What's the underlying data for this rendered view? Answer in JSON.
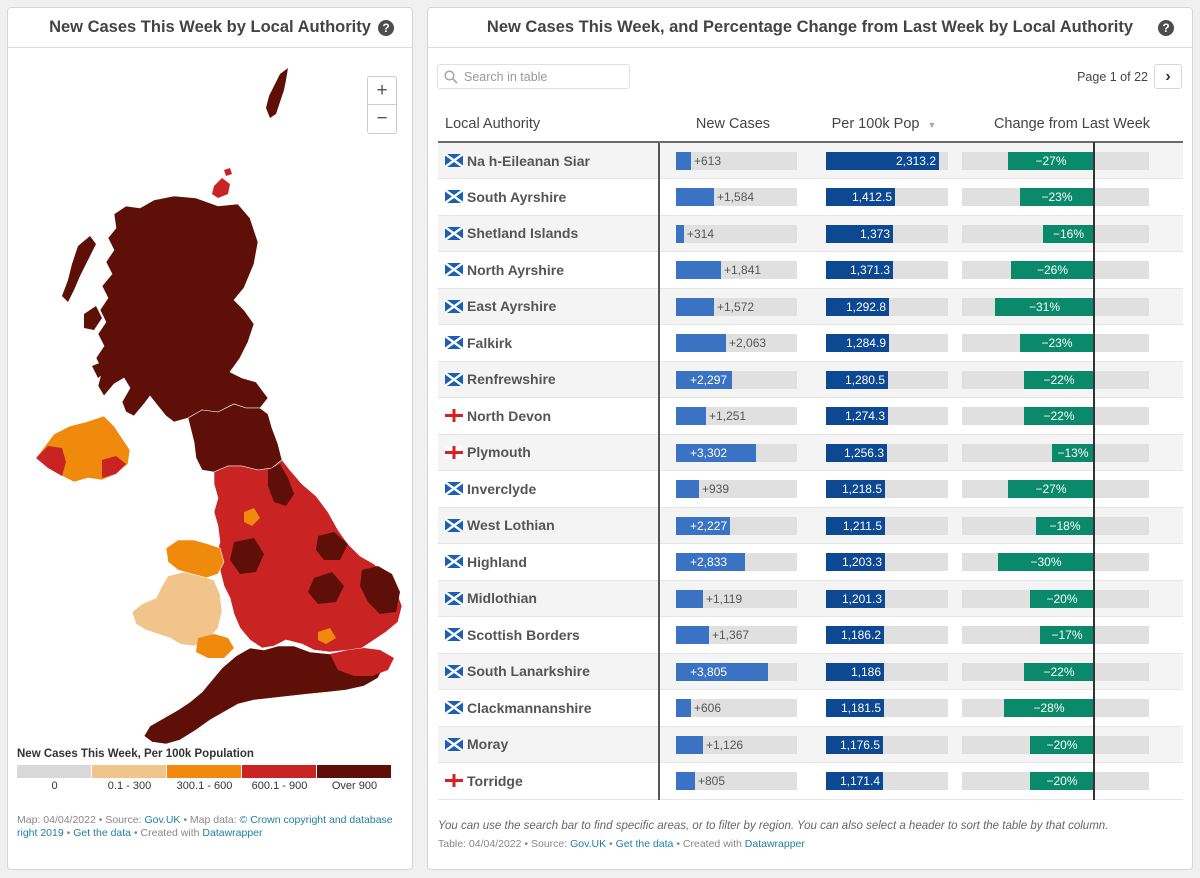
{
  "left_panel": {
    "title": "New Cases This Week by Local Authority",
    "help": "?",
    "zoom_in": "+",
    "zoom_out": "−",
    "legend_title": "New Cases This Week, Per 100k Population",
    "legend": [
      {
        "label": "0",
        "color": "#d8d8d8"
      },
      {
        "label": "0.1 - 300",
        "color": "#f0c48a"
      },
      {
        "label": "300.1 - 600",
        "color": "#f08a0d"
      },
      {
        "label": "600.1 - 900",
        "color": "#c92323"
      },
      {
        "label": "Over 900",
        "color": "#5e1008"
      }
    ],
    "footer": {
      "line1_a": "Map: 04/04/2022 • Source: ",
      "source": "Gov.UK",
      "line1_b": " • Map data: ",
      "copyright": "© Crown copyright and database",
      "copyright2": "right 2019",
      "sep1": " • ",
      "get_data": "Get the data",
      "created": " • Created with ",
      "tool": "Datawrapper"
    }
  },
  "right_panel": {
    "title": "New Cases This Week, and Percentage Change from Last Week by Local Authority",
    "help": "?",
    "search_placeholder": "Search in table",
    "pager": "Page 1 of 22",
    "next": "›",
    "columns": {
      "authority": "Local Authority",
      "new_cases": "New Cases",
      "per100k": "Per 100k Pop",
      "change": "Change from Last Week",
      "sort_arrow": "▼"
    },
    "max_new_cases": 5000,
    "max_per100k": 2500,
    "max_change": 40,
    "rows": [
      {
        "flag": "scotland",
        "name": "Na h-Eileanan Siar",
        "new_cases": 613,
        "new_cases_label": "+613",
        "per100k": 2313.2,
        "per100k_label": "2,313.2",
        "change": -27,
        "change_label": "−27%"
      },
      {
        "flag": "scotland",
        "name": "South Ayrshire",
        "new_cases": 1584,
        "new_cases_label": "+1,584",
        "per100k": 1412.5,
        "per100k_label": "1,412.5",
        "change": -23,
        "change_label": "−23%"
      },
      {
        "flag": "scotland",
        "name": "Shetland Islands",
        "new_cases": 314,
        "new_cases_label": "+314",
        "per100k": 1373,
        "per100k_label": "1,373",
        "change": -16,
        "change_label": "−16%"
      },
      {
        "flag": "scotland",
        "name": "North Ayrshire",
        "new_cases": 1841,
        "new_cases_label": "+1,841",
        "per100k": 1371.3,
        "per100k_label": "1,371.3",
        "change": -26,
        "change_label": "−26%"
      },
      {
        "flag": "scotland",
        "name": "East Ayrshire",
        "new_cases": 1572,
        "new_cases_label": "+1,572",
        "per100k": 1292.8,
        "per100k_label": "1,292.8",
        "change": -31,
        "change_label": "−31%"
      },
      {
        "flag": "scotland",
        "name": "Falkirk",
        "new_cases": 2063,
        "new_cases_label": "+2,063",
        "per100k": 1284.9,
        "per100k_label": "1,284.9",
        "change": -23,
        "change_label": "−23%"
      },
      {
        "flag": "scotland",
        "name": "Renfrewshire",
        "new_cases": 2297,
        "new_cases_label": "+2,297",
        "per100k": 1280.5,
        "per100k_label": "1,280.5",
        "change": -22,
        "change_label": "−22%"
      },
      {
        "flag": "england",
        "name": "North Devon",
        "new_cases": 1251,
        "new_cases_label": "+1,251",
        "per100k": 1274.3,
        "per100k_label": "1,274.3",
        "change": -22,
        "change_label": "−22%"
      },
      {
        "flag": "england",
        "name": "Plymouth",
        "new_cases": 3302,
        "new_cases_label": "+3,302",
        "per100k": 1256.3,
        "per100k_label": "1,256.3",
        "change": -13,
        "change_label": "−13%"
      },
      {
        "flag": "scotland",
        "name": "Inverclyde",
        "new_cases": 939,
        "new_cases_label": "+939",
        "per100k": 1218.5,
        "per100k_label": "1,218.5",
        "change": -27,
        "change_label": "−27%"
      },
      {
        "flag": "scotland",
        "name": "West Lothian",
        "new_cases": 2227,
        "new_cases_label": "+2,227",
        "per100k": 1211.5,
        "per100k_label": "1,211.5",
        "change": -18,
        "change_label": "−18%"
      },
      {
        "flag": "scotland",
        "name": "Highland",
        "new_cases": 2833,
        "new_cases_label": "+2,833",
        "per100k": 1203.3,
        "per100k_label": "1,203.3",
        "change": -30,
        "change_label": "−30%"
      },
      {
        "flag": "scotland",
        "name": "Midlothian",
        "new_cases": 1119,
        "new_cases_label": "+1,119",
        "per100k": 1201.3,
        "per100k_label": "1,201.3",
        "change": -20,
        "change_label": "−20%"
      },
      {
        "flag": "scotland",
        "name": "Scottish Borders",
        "new_cases": 1367,
        "new_cases_label": "+1,367",
        "per100k": 1186.2,
        "per100k_label": "1,186.2",
        "change": -17,
        "change_label": "−17%"
      },
      {
        "flag": "scotland",
        "name": "South Lanarkshire",
        "new_cases": 3805,
        "new_cases_label": "+3,805",
        "per100k": 1186,
        "per100k_label": "1,186",
        "change": -22,
        "change_label": "−22%"
      },
      {
        "flag": "scotland",
        "name": "Clackmannanshire",
        "new_cases": 606,
        "new_cases_label": "+606",
        "per100k": 1181.5,
        "per100k_label": "1,181.5",
        "change": -28,
        "change_label": "−28%"
      },
      {
        "flag": "scotland",
        "name": "Moray",
        "new_cases": 1126,
        "new_cases_label": "+1,126",
        "per100k": 1176.5,
        "per100k_label": "1,176.5",
        "change": -20,
        "change_label": "−20%"
      },
      {
        "flag": "england",
        "name": "Torridge",
        "new_cases": 805,
        "new_cases_label": "+805",
        "per100k": 1171.4,
        "per100k_label": "1,171.4",
        "change": -20,
        "change_label": "−20%"
      }
    ],
    "note": "You can use the search bar to find specific areas, or to filter by region. You can also select a header to sort the table by that column.",
    "footer": {
      "prefix": "Table: 04/04/2022 • Source: ",
      "source": "Gov.UK",
      "sep": " • ",
      "get_data": "Get the data",
      "created": " • Created with ",
      "tool": "Datawrapper"
    },
    "colors": {
      "new_cases": "#3a73c4",
      "per100k": "#0d4893",
      "change": "#0a8a6a"
    }
  }
}
